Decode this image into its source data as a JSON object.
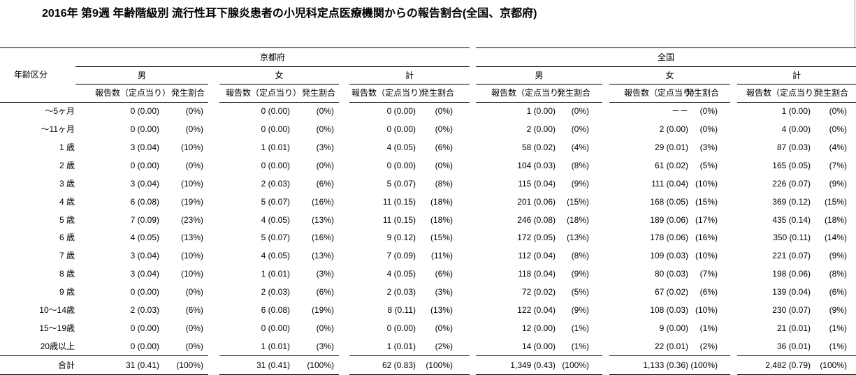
{
  "title": "2016年 第9週 年齢階級別 流行性耳下腺炎患者の小児科定点医療機関からの報告割合(全国、京都府)",
  "table": {
    "row_header": "年齢区分",
    "regions": [
      {
        "name": "京都府",
        "groups": [
          {
            "name": "男",
            "columns": [
              "報告数（定点当り）",
              "発生割合"
            ]
          },
          {
            "name": "女",
            "columns": [
              "報告数（定点当り）",
              "発生割合"
            ]
          },
          {
            "name": "計",
            "columns": [
              "報告数（定点当り）",
              "発生割合"
            ]
          }
        ]
      },
      {
        "name": "全国",
        "groups": [
          {
            "name": "男",
            "columns": [
              "報告数（定点当り）",
              "発生割合"
            ]
          },
          {
            "name": "女",
            "columns": [
              "報告数（定点当り）",
              "発生割合"
            ]
          },
          {
            "name": "計",
            "columns": [
              "報告数（定点当り）",
              "発生割合"
            ]
          }
        ]
      }
    ],
    "rows": [
      {
        "label": "～5ヶ月",
        "cells": [
          "0 (0.00)",
          "(0%)",
          "0 (0.00)",
          "(0%)",
          "0 (0.00)",
          "(0%)",
          "1 (0.00)",
          "(0%)",
          "－－",
          "(0%)",
          "1 (0.00)",
          "(0%)"
        ]
      },
      {
        "label": "～11ヶ月",
        "cells": [
          "0 (0.00)",
          "(0%)",
          "0 (0.00)",
          "(0%)",
          "0 (0.00)",
          "(0%)",
          "2 (0.00)",
          "(0%)",
          "2 (0.00)",
          "(0%)",
          "4 (0.00)",
          "(0%)"
        ]
      },
      {
        "label": "1 歳",
        "cells": [
          "3 (0.04)",
          "(10%)",
          "1 (0.01)",
          "(3%)",
          "4 (0.05)",
          "(6%)",
          "58 (0.02)",
          "(4%)",
          "29 (0.01)",
          "(3%)",
          "87 (0.03)",
          "(4%)"
        ]
      },
      {
        "label": "2 歳",
        "cells": [
          "0 (0.00)",
          "(0%)",
          "0 (0.00)",
          "(0%)",
          "0 (0.00)",
          "(0%)",
          "104 (0.03)",
          "(8%)",
          "61 (0.02)",
          "(5%)",
          "165 (0.05)",
          "(7%)"
        ]
      },
      {
        "label": "3 歳",
        "cells": [
          "3 (0.04)",
          "(10%)",
          "2 (0.03)",
          "(6%)",
          "5 (0.07)",
          "(8%)",
          "115 (0.04)",
          "(9%)",
          "111 (0.04)",
          "(10%)",
          "226 (0.07)",
          "(9%)"
        ]
      },
      {
        "label": "4 歳",
        "cells": [
          "6 (0.08)",
          "(19%)",
          "5 (0.07)",
          "(16%)",
          "11 (0.15)",
          "(18%)",
          "201 (0.06)",
          "(15%)",
          "168 (0.05)",
          "(15%)",
          "369 (0.12)",
          "(15%)"
        ]
      },
      {
        "label": "5 歳",
        "cells": [
          "7 (0.09)",
          "(23%)",
          "4 (0.05)",
          "(13%)",
          "11 (0.15)",
          "(18%)",
          "246 (0.08)",
          "(18%)",
          "189 (0.06)",
          "(17%)",
          "435 (0.14)",
          "(18%)"
        ]
      },
      {
        "label": "6 歳",
        "cells": [
          "4 (0.05)",
          "(13%)",
          "5 (0.07)",
          "(16%)",
          "9 (0.12)",
          "(15%)",
          "172 (0.05)",
          "(13%)",
          "178 (0.06)",
          "(16%)",
          "350 (0.11)",
          "(14%)"
        ]
      },
      {
        "label": "7 歳",
        "cells": [
          "3 (0.04)",
          "(10%)",
          "4 (0.05)",
          "(13%)",
          "7 (0.09)",
          "(11%)",
          "112 (0.04)",
          "(8%)",
          "109 (0.03)",
          "(10%)",
          "221 (0.07)",
          "(9%)"
        ]
      },
      {
        "label": "8 歳",
        "cells": [
          "3 (0.04)",
          "(10%)",
          "1 (0.01)",
          "(3%)",
          "4 (0.05)",
          "(6%)",
          "118 (0.04)",
          "(9%)",
          "80 (0.03)",
          "(7%)",
          "198 (0.06)",
          "(8%)"
        ]
      },
      {
        "label": "9 歳",
        "cells": [
          "0 (0.00)",
          "(0%)",
          "2 (0.03)",
          "(6%)",
          "2 (0.03)",
          "(3%)",
          "72 (0.02)",
          "(5%)",
          "67 (0.02)",
          "(6%)",
          "139 (0.04)",
          "(6%)"
        ]
      },
      {
        "label": "10～14歳",
        "cells": [
          "2 (0.03)",
          "(6%)",
          "6 (0.08)",
          "(19%)",
          "8 (0.11)",
          "(13%)",
          "122 (0.04)",
          "(9%)",
          "108 (0.03)",
          "(10%)",
          "230 (0.07)",
          "(9%)"
        ]
      },
      {
        "label": "15～19歳",
        "cells": [
          "0 (0.00)",
          "(0%)",
          "0 (0.00)",
          "(0%)",
          "0 (0.00)",
          "(0%)",
          "12 (0.00)",
          "(1%)",
          "9 (0.00)",
          "(1%)",
          "21 (0.01)",
          "(1%)"
        ]
      },
      {
        "label": "20歳以上",
        "cells": [
          "0 (0.00)",
          "(0%)",
          "1 (0.01)",
          "(3%)",
          "1 (0.01)",
          "(2%)",
          "14 (0.00)",
          "(1%)",
          "22 (0.01)",
          "(2%)",
          "36 (0.01)",
          "(1%)"
        ]
      }
    ],
    "total": {
      "label": "合計",
      "cells": [
        "31 (0.41)",
        "(100%)",
        "31 (0.41)",
        "(100%)",
        "62 (0.83)",
        "(100%)",
        "1,349 (0.43)",
        "(100%)",
        "1,133 (0.36)",
        "(100%)",
        "2,482 (0.79)",
        "(100%)"
      ]
    }
  }
}
